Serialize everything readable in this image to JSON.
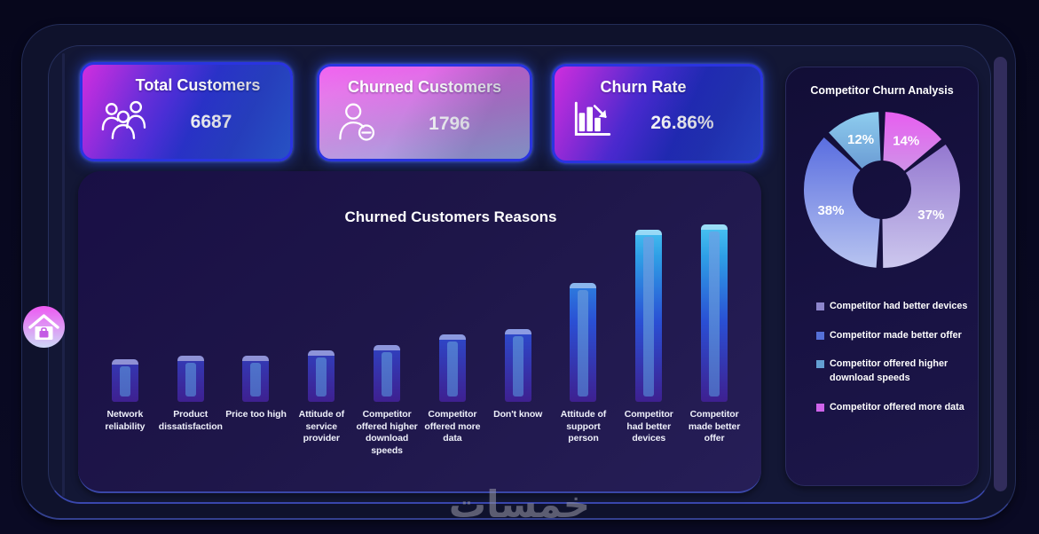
{
  "watermark_text": "خمسات",
  "kpi_cards": [
    {
      "title": "Total Customers",
      "value": "6687",
      "icon": "people-group-icon"
    },
    {
      "title": "Churned Customers",
      "value": "1796",
      "icon": "person-minus-icon"
    },
    {
      "title": "Churn Rate",
      "value": "26.86%",
      "icon": "declining-bar-chart-icon"
    }
  ],
  "right_panel": {
    "title": "Competitor Churn Analysis",
    "legend": [
      {
        "label": "Competitor had better devices",
        "marker_color": "#8d85cc"
      },
      {
        "label": "Competitor made better offer",
        "marker_color": "#5570d8"
      },
      {
        "label": "Competitor offered higher download speeds",
        "marker_color": "#639fd2"
      },
      {
        "label": "Competitor offered more data",
        "marker_color": "#cf63ea"
      }
    ]
  },
  "chart_data": [
    {
      "type": "bar",
      "title": "Churned Customers Reasons",
      "categories": [
        "Network reliability",
        "Product dissatisfaction",
        "Price too high",
        "Attitude of service provider",
        "Competitor offered higher download speeds",
        "Competitor offered more data",
        "Don't know",
        "Attitude of support person",
        "Competitor had better devices",
        "Competitor made better offer"
      ],
      "values": [
        24,
        26,
        26,
        29,
        32,
        38,
        41,
        67,
        97,
        100
      ],
      "value_basis": "relative bar height, tallest bar = 100 (chart shows no numeric data labels)",
      "xlabel": "",
      "ylabel": "",
      "grid": false,
      "legend_position": "none",
      "bar_colors_bottom_to_top": [
        "#3e2090",
        "#2a4fd4",
        "#2e9fe6",
        "#4ac4f2"
      ],
      "bar_inner_highlight": "#507fd6"
    },
    {
      "type": "donut",
      "title": "Competitor Churn Analysis",
      "unit": "%",
      "segments": [
        {
          "label": "Competitor offered more data",
          "value": 14,
          "gradient": [
            "#e85ef0",
            "#cf92e8"
          ]
        },
        {
          "label": "Competitor had better devices",
          "value": 37,
          "gradient": [
            "#9478d0",
            "#cdc8ee"
          ]
        },
        {
          "label": "Competitor made better offer",
          "value": 38,
          "gradient": [
            "#5a6ee0",
            "#b8c4f0"
          ]
        },
        {
          "label": "Competitor offered higher download speeds",
          "value": 12,
          "gradient": [
            "#8ecdef",
            "#6b9cd4"
          ]
        }
      ],
      "start": "top",
      "direction": "clockwise",
      "gap_degrees": 5,
      "inner_radius_ratio": 0.38,
      "labels": "percent shown inside slices",
      "legend_position": "below"
    }
  ]
}
